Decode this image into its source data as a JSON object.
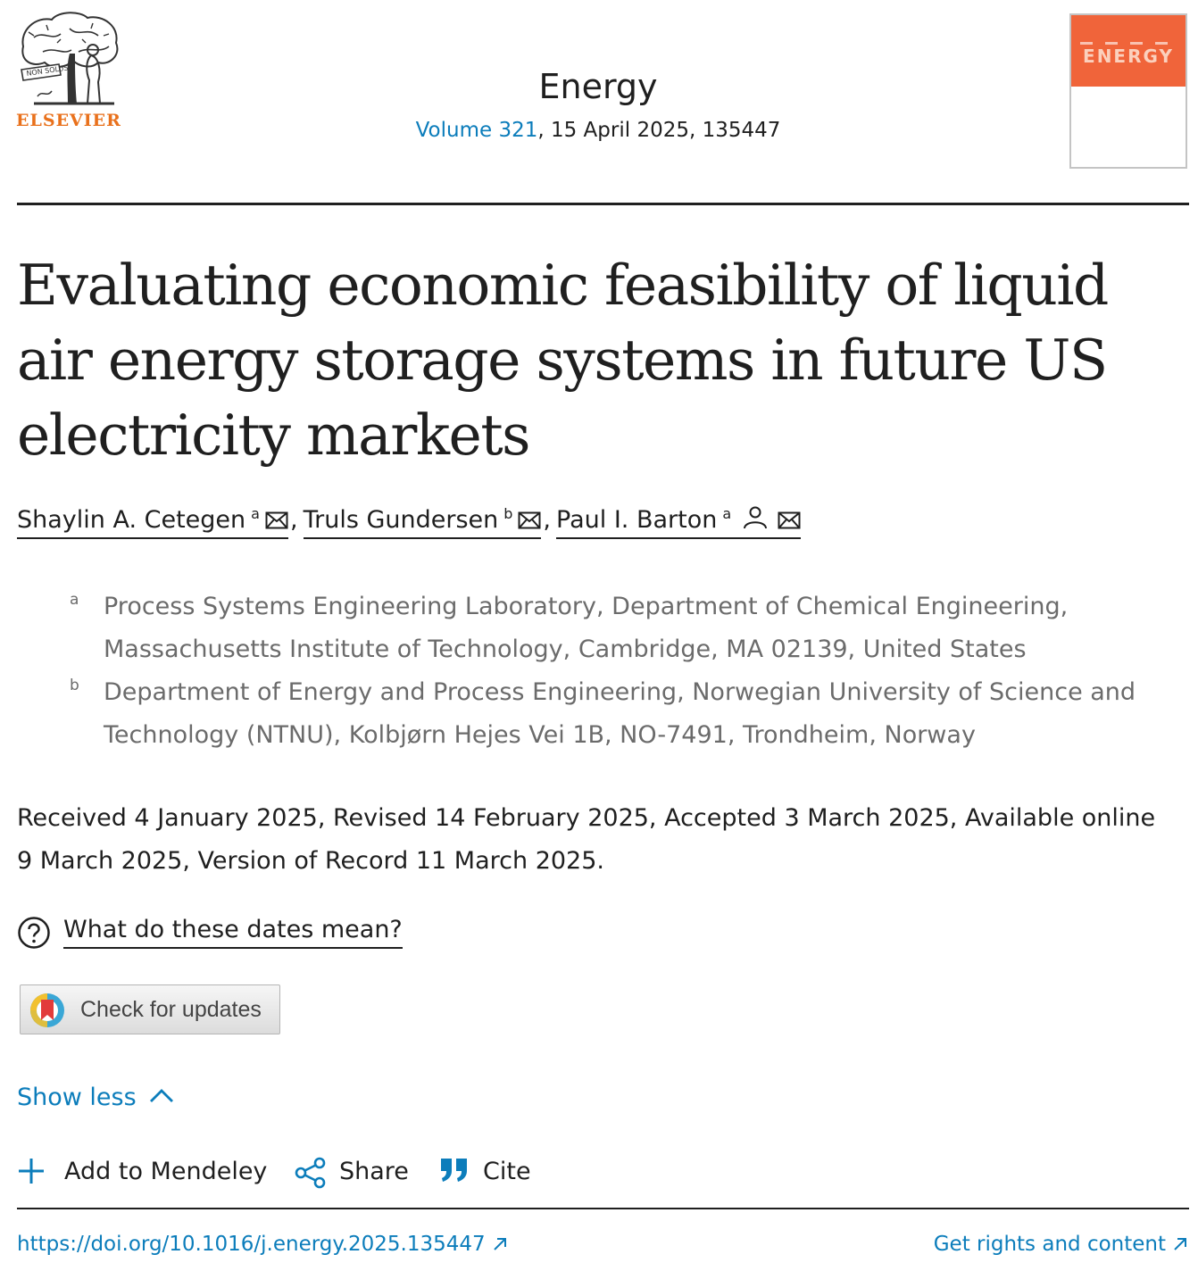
{
  "header": {
    "publisher_logo_text": "ELSEVIER",
    "logo_ribbon_text": "NON SOLUS",
    "journal_title": "Energy",
    "volume_link": "Volume 321",
    "issue_rest": ", 15 April 2025, 135447",
    "cover_title": "ENERGY"
  },
  "article": {
    "title": "Evaluating economic feasibility of liquid air energy storage systems in future US electricity markets"
  },
  "authors": [
    {
      "name": "Shaylin A. Cetegen",
      "affiliation": "a",
      "icons": [
        "mail-icon"
      ]
    },
    {
      "name": "Truls Gundersen",
      "affiliation": "b",
      "icons": [
        "mail-icon"
      ]
    },
    {
      "name": "Paul I. Barton",
      "affiliation": "a",
      "icons": [
        "person-icon",
        "mail-icon"
      ]
    }
  ],
  "affiliations": [
    {
      "label": "a",
      "text": "Process Systems Engineering Laboratory, Department of Chemical Engineering, Massachusetts Institute of Technology, Cambridge, MA 02139, United States"
    },
    {
      "label": "b",
      "text": "Department of Energy and Process Engineering, Norwegian University of Science and Technology (NTNU), Kolbjørn Hejes Vei 1B, NO-7491, Trondheim, Norway"
    }
  ],
  "dates_text": "Received 4 January 2025, Revised 14 February 2025, Accepted 3 March 2025, Available online 9 March 2025, Version of Record 11 March 2025.",
  "dates_help_link": "What do these dates mean?",
  "check_updates_label": "Check for updates",
  "show_less_label": "Show less",
  "actions": {
    "mendeley": "Add to Mendeley",
    "share": "Share",
    "cite": "Cite"
  },
  "footer": {
    "doi": "https://doi.org/10.1016/j.energy.2025.135447",
    "rights": "Get rights and content"
  },
  "colors": {
    "link_blue": "#0c7dbb",
    "elsevier_orange": "#e9711c",
    "cover_orange": "#f0643a",
    "text": "#1f1f1f",
    "muted": "#6b6b6b"
  }
}
